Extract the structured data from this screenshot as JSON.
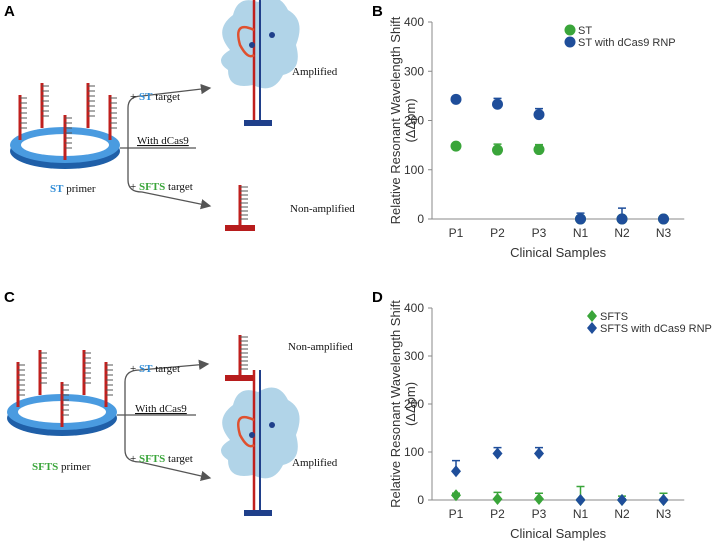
{
  "panels": {
    "a": "A",
    "b": "B",
    "c": "C",
    "d": "D"
  },
  "diagram_a": {
    "primer": {
      "highlight": "ST",
      "suffix": "primer"
    },
    "branch_top": {
      "prefix": "+",
      "highlight": "ST",
      "suffix": "target"
    },
    "branch_middle": "With dCas9",
    "branch_bottom": {
      "prefix": "+",
      "highlight": "SFTS",
      "suffix": "target"
    },
    "outcome_top": "Amplified",
    "outcome_bottom": "Non-amplified"
  },
  "diagram_c": {
    "primer": {
      "highlight": "SFTS",
      "suffix": "primer"
    },
    "branch_top": {
      "prefix": "+",
      "highlight": "ST",
      "suffix": "target"
    },
    "branch_middle": "With dCas9",
    "branch_bottom": {
      "prefix": "+",
      "highlight": "SFTS",
      "suffix": "target"
    },
    "outcome_top": "Non-amplified",
    "outcome_bottom": "Amplified"
  },
  "chart_data": [
    {
      "type": "scatter",
      "marker": "circle",
      "legend": "upper right",
      "x_label": "Clinical Samples",
      "y_label": [
        "Relative Resonant Wavelength Shift",
        "(ΔΔpm)"
      ],
      "categories": [
        "P1",
        "P2",
        "P3",
        "N1",
        "N2",
        "N3"
      ],
      "ylim": [
        0,
        400
      ],
      "yticks": [
        0,
        100,
        200,
        300,
        400
      ],
      "grid": false,
      "series": [
        {
          "name": "ST",
          "color": "#3aa53a",
          "values": [
            148,
            140,
            141,
            0,
            0,
            0
          ],
          "errors": [
            4,
            12,
            10,
            4,
            4,
            2
          ]
        },
        {
          "name": "ST with dCas9 RNP",
          "color": "#1f4e9a",
          "values": [
            243,
            233,
            212,
            0,
            0,
            0
          ],
          "errors": [
            4,
            12,
            12,
            12,
            22,
            2
          ]
        }
      ]
    },
    {
      "type": "scatter",
      "marker": "diamond",
      "legend": "upper right",
      "x_label": "Clinical Samples",
      "y_label": [
        "Relative Resonant Wavelength Shift",
        "(ΔΔpm)"
      ],
      "categories": [
        "P1",
        "P2",
        "P3",
        "N1",
        "N2",
        "N3"
      ],
      "ylim": [
        0,
        400
      ],
      "yticks": [
        0,
        100,
        200,
        300,
        400
      ],
      "grid": false,
      "series": [
        {
          "name": "SFTS",
          "color": "#3aa53a",
          "values": [
            10,
            2,
            2,
            0,
            0,
            0
          ],
          "errors": [
            4,
            14,
            12,
            28,
            8,
            14
          ]
        },
        {
          "name": "SFTS with dCas9 RNP",
          "color": "#1f4e9a",
          "values": [
            60,
            97,
            97,
            0,
            0,
            0
          ],
          "errors": [
            22,
            12,
            12,
            2,
            2,
            2
          ]
        }
      ]
    }
  ]
}
